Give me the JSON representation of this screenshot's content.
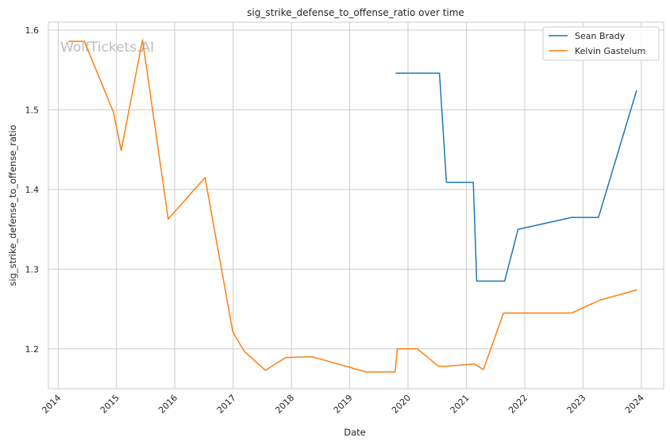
{
  "chart_data": {
    "type": "line",
    "title": "sig_strike_defense_to_offense_ratio over time",
    "xlabel": "Date",
    "ylabel": "sig_strike_defense_to_offense_ratio",
    "watermark": "WolfTickets.AI",
    "xlim": [
      "2013-11-01",
      "2024-05-20"
    ],
    "ylim": [
      1.15,
      1.61
    ],
    "x_ticks": [
      "2014",
      "2015",
      "2016",
      "2017",
      "2018",
      "2019",
      "2020",
      "2021",
      "2022",
      "2023",
      "2024"
    ],
    "y_ticks": [
      "1.2",
      "1.3",
      "1.4",
      "1.5",
      "1.6"
    ],
    "grid": true,
    "legend_position": "top-right",
    "series": [
      {
        "name": "Sean Brady",
        "color": "#1f77b4",
        "points": [
          {
            "x": "2019-10-18",
            "y": 1.546
          },
          {
            "x": "2020-07-16",
            "y": 1.546
          },
          {
            "x": "2020-08-29",
            "y": 1.409
          },
          {
            "x": "2021-02-13",
            "y": 1.409
          },
          {
            "x": "2021-03-06",
            "y": 1.285
          },
          {
            "x": "2021-08-28",
            "y": 1.285
          },
          {
            "x": "2021-11-20",
            "y": 1.35
          },
          {
            "x": "2022-10-22",
            "y": 1.365
          },
          {
            "x": "2023-04-08",
            "y": 1.365
          },
          {
            "x": "2023-12-02",
            "y": 1.524
          }
        ]
      },
      {
        "name": "Kelvin Gastelum",
        "color": "#ff7f0e",
        "points": [
          {
            "x": "2014-03-08",
            "y": 1.586
          },
          {
            "x": "2014-06-14",
            "y": 1.586
          },
          {
            "x": "2014-12-13",
            "y": 1.497
          },
          {
            "x": "2015-01-31",
            "y": 1.449
          },
          {
            "x": "2015-06-13",
            "y": 1.588
          },
          {
            "x": "2015-11-21",
            "y": 1.363
          },
          {
            "x": "2016-07-09",
            "y": 1.415
          },
          {
            "x": "2016-12-30",
            "y": 1.221
          },
          {
            "x": "2017-03-11",
            "y": 1.197
          },
          {
            "x": "2017-07-22",
            "y": 1.173
          },
          {
            "x": "2017-11-25",
            "y": 1.189
          },
          {
            "x": "2018-05-12",
            "y": 1.19
          },
          {
            "x": "2019-04-13",
            "y": 1.171
          },
          {
            "x": "2019-10-12",
            "y": 1.171
          },
          {
            "x": "2019-10-26",
            "y": 1.2
          },
          {
            "x": "2020-02-29",
            "y": 1.2
          },
          {
            "x": "2020-07-11",
            "y": 1.178
          },
          {
            "x": "2020-08-15",
            "y": 1.178
          },
          {
            "x": "2021-02-20",
            "y": 1.181
          },
          {
            "x": "2021-04-17",
            "y": 1.174
          },
          {
            "x": "2021-08-21",
            "y": 1.245
          },
          {
            "x": "2022-01-22",
            "y": 1.245
          },
          {
            "x": "2022-10-22",
            "y": 1.245
          },
          {
            "x": "2023-04-15",
            "y": 1.261
          },
          {
            "x": "2023-12-02",
            "y": 1.274
          }
        ]
      }
    ]
  }
}
